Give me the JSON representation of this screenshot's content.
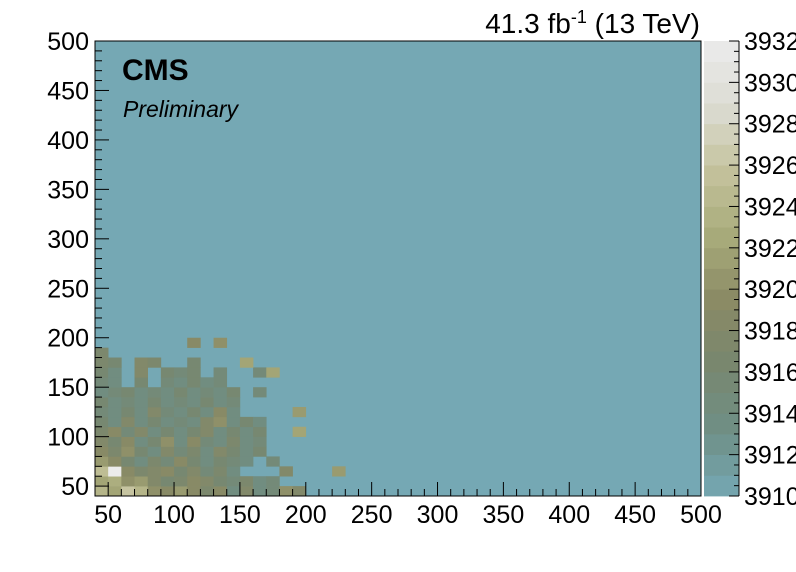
{
  "chart_data": {
    "type": "heatmap",
    "title": "",
    "xlabel": "",
    "ylabel": "",
    "xlim": [
      40,
      500
    ],
    "ylim": [
      40,
      500
    ],
    "bin_width": 10,
    "x_ticks": [
      "50",
      "100",
      "150",
      "200",
      "250",
      "300",
      "350",
      "400",
      "450",
      "500"
    ],
    "y_ticks": [
      "50",
      "100",
      "150",
      "200",
      "250",
      "300",
      "350",
      "400",
      "450",
      "500"
    ],
    "z_range": [
      3910,
      3932
    ],
    "z_ticks": [
      "3910",
      "3912",
      "3914",
      "3916",
      "3918",
      "3920",
      "3922",
      "3924",
      "3926",
      "3928",
      "3930",
      "3932"
    ],
    "palette": [
      "#75a8b4",
      "#6f8f86",
      "#78876f",
      "#8a8a65",
      "#a8ab7a",
      "#c4c29c",
      "#dcdcd3",
      "#ececec"
    ],
    "background_value": 3910,
    "cells": [
      {
        "x": 40,
        "y": 40,
        "z": 3924
      },
      {
        "x": 50,
        "y": 40,
        "z": 3922
      },
      {
        "x": 60,
        "y": 40,
        "z": 3926
      },
      {
        "x": 70,
        "y": 40,
        "z": 3924
      },
      {
        "x": 80,
        "y": 40,
        "z": 3920
      },
      {
        "x": 90,
        "y": 40,
        "z": 3919
      },
      {
        "x": 100,
        "y": 40,
        "z": 3921
      },
      {
        "x": 110,
        "y": 40,
        "z": 3919
      },
      {
        "x": 120,
        "y": 40,
        "z": 3917
      },
      {
        "x": 130,
        "y": 40,
        "z": 3919
      },
      {
        "x": 140,
        "y": 40,
        "z": 3914
      },
      {
        "x": 150,
        "y": 40,
        "z": 3918
      },
      {
        "x": 160,
        "y": 40,
        "z": 3914
      },
      {
        "x": 170,
        "y": 40,
        "z": 3915
      },
      {
        "x": 180,
        "y": 40,
        "z": 3920
      },
      {
        "x": 190,
        "y": 40,
        "z": 3918
      },
      {
        "x": 40,
        "y": 50,
        "z": 3922
      },
      {
        "x": 50,
        "y": 50,
        "z": 3923
      },
      {
        "x": 60,
        "y": 50,
        "z": 3920
      },
      {
        "x": 70,
        "y": 50,
        "z": 3921
      },
      {
        "x": 80,
        "y": 50,
        "z": 3918
      },
      {
        "x": 90,
        "y": 50,
        "z": 3916
      },
      {
        "x": 100,
        "y": 50,
        "z": 3917
      },
      {
        "x": 110,
        "y": 50,
        "z": 3919
      },
      {
        "x": 120,
        "y": 50,
        "z": 3918
      },
      {
        "x": 130,
        "y": 50,
        "z": 3916
      },
      {
        "x": 140,
        "y": 50,
        "z": 3915
      },
      {
        "x": 150,
        "y": 50,
        "z": 3917
      },
      {
        "x": 160,
        "y": 50,
        "z": 3914
      },
      {
        "x": 170,
        "y": 50,
        "z": 3915
      },
      {
        "x": 40,
        "y": 60,
        "z": 3925
      },
      {
        "x": 50,
        "y": 60,
        "z": 3932
      },
      {
        "x": 60,
        "y": 60,
        "z": 3919
      },
      {
        "x": 70,
        "y": 60,
        "z": 3917
      },
      {
        "x": 80,
        "y": 60,
        "z": 3918
      },
      {
        "x": 90,
        "y": 60,
        "z": 3919
      },
      {
        "x": 100,
        "y": 60,
        "z": 3916
      },
      {
        "x": 110,
        "y": 60,
        "z": 3918
      },
      {
        "x": 120,
        "y": 60,
        "z": 3915
      },
      {
        "x": 130,
        "y": 60,
        "z": 3917
      },
      {
        "x": 140,
        "y": 60,
        "z": 3914
      },
      {
        "x": 180,
        "y": 60,
        "z": 3918
      },
      {
        "x": 220,
        "y": 60,
        "z": 3921
      },
      {
        "x": 40,
        "y": 70,
        "z": 3921
      },
      {
        "x": 50,
        "y": 70,
        "z": 3919
      },
      {
        "x": 60,
        "y": 70,
        "z": 3916
      },
      {
        "x": 70,
        "y": 70,
        "z": 3914
      },
      {
        "x": 80,
        "y": 70,
        "z": 3917
      },
      {
        "x": 90,
        "y": 70,
        "z": 3915
      },
      {
        "x": 100,
        "y": 70,
        "z": 3919
      },
      {
        "x": 110,
        "y": 70,
        "z": 3916
      },
      {
        "x": 120,
        "y": 70,
        "z": 3914
      },
      {
        "x": 130,
        "y": 70,
        "z": 3916
      },
      {
        "x": 140,
        "y": 70,
        "z": 3915
      },
      {
        "x": 150,
        "y": 70,
        "z": 3914
      },
      {
        "x": 170,
        "y": 70,
        "z": 3915
      },
      {
        "x": 40,
        "y": 80,
        "z": 3919
      },
      {
        "x": 50,
        "y": 80,
        "z": 3917
      },
      {
        "x": 60,
        "y": 80,
        "z": 3920
      },
      {
        "x": 70,
        "y": 80,
        "z": 3916
      },
      {
        "x": 80,
        "y": 80,
        "z": 3914
      },
      {
        "x": 90,
        "y": 80,
        "z": 3918
      },
      {
        "x": 100,
        "y": 80,
        "z": 3915
      },
      {
        "x": 110,
        "y": 80,
        "z": 3917
      },
      {
        "x": 120,
        "y": 80,
        "z": 3914
      },
      {
        "x": 130,
        "y": 80,
        "z": 3918
      },
      {
        "x": 140,
        "y": 80,
        "z": 3916
      },
      {
        "x": 150,
        "y": 80,
        "z": 3914
      },
      {
        "x": 160,
        "y": 80,
        "z": 3916
      },
      {
        "x": 40,
        "y": 90,
        "z": 3918
      },
      {
        "x": 50,
        "y": 90,
        "z": 3916
      },
      {
        "x": 60,
        "y": 90,
        "z": 3919
      },
      {
        "x": 70,
        "y": 90,
        "z": 3914
      },
      {
        "x": 80,
        "y": 90,
        "z": 3916
      },
      {
        "x": 90,
        "y": 90,
        "z": 3920
      },
      {
        "x": 100,
        "y": 90,
        "z": 3914
      },
      {
        "x": 110,
        "y": 90,
        "z": 3919
      },
      {
        "x": 120,
        "y": 90,
        "z": 3915
      },
      {
        "x": 130,
        "y": 90,
        "z": 3914
      },
      {
        "x": 140,
        "y": 90,
        "z": 3917
      },
      {
        "x": 150,
        "y": 90,
        "z": 3914
      },
      {
        "x": 160,
        "y": 90,
        "z": 3915
      },
      {
        "x": 40,
        "y": 100,
        "z": 3917
      },
      {
        "x": 50,
        "y": 100,
        "z": 3919
      },
      {
        "x": 60,
        "y": 100,
        "z": 3915
      },
      {
        "x": 70,
        "y": 100,
        "z": 3918
      },
      {
        "x": 80,
        "y": 100,
        "z": 3914
      },
      {
        "x": 90,
        "y": 100,
        "z": 3916
      },
      {
        "x": 100,
        "y": 100,
        "z": 3914
      },
      {
        "x": 110,
        "y": 100,
        "z": 3916
      },
      {
        "x": 120,
        "y": 100,
        "z": 3918
      },
      {
        "x": 130,
        "y": 100,
        "z": 3914
      },
      {
        "x": 140,
        "y": 100,
        "z": 3916
      },
      {
        "x": 150,
        "y": 100,
        "z": 3914
      },
      {
        "x": 160,
        "y": 100,
        "z": 3916
      },
      {
        "x": 190,
        "y": 100,
        "z": 3922
      },
      {
        "x": 40,
        "y": 110,
        "z": 3916
      },
      {
        "x": 50,
        "y": 110,
        "z": 3914
      },
      {
        "x": 60,
        "y": 110,
        "z": 3918
      },
      {
        "x": 70,
        "y": 110,
        "z": 3914
      },
      {
        "x": 80,
        "y": 110,
        "z": 3916
      },
      {
        "x": 90,
        "y": 110,
        "z": 3914
      },
      {
        "x": 100,
        "y": 110,
        "z": 3915
      },
      {
        "x": 110,
        "y": 110,
        "z": 3914
      },
      {
        "x": 120,
        "y": 110,
        "z": 3918
      },
      {
        "x": 130,
        "y": 110,
        "z": 3920
      },
      {
        "x": 140,
        "y": 110,
        "z": 3914
      },
      {
        "x": 150,
        "y": 110,
        "z": 3916
      },
      {
        "x": 160,
        "y": 110,
        "z": 3914
      },
      {
        "x": 40,
        "y": 120,
        "z": 3915
      },
      {
        "x": 50,
        "y": 120,
        "z": 3914
      },
      {
        "x": 60,
        "y": 120,
        "z": 3916
      },
      {
        "x": 70,
        "y": 120,
        "z": 3914
      },
      {
        "x": 80,
        "y": 120,
        "z": 3918
      },
      {
        "x": 90,
        "y": 120,
        "z": 3915
      },
      {
        "x": 100,
        "y": 120,
        "z": 3914
      },
      {
        "x": 110,
        "y": 120,
        "z": 3916
      },
      {
        "x": 120,
        "y": 120,
        "z": 3914
      },
      {
        "x": 130,
        "y": 120,
        "z": 3919
      },
      {
        "x": 140,
        "y": 120,
        "z": 3914
      },
      {
        "x": 190,
        "y": 120,
        "z": 3921
      },
      {
        "x": 40,
        "y": 130,
        "z": 3916
      },
      {
        "x": 50,
        "y": 130,
        "z": 3914
      },
      {
        "x": 60,
        "y": 130,
        "z": 3915
      },
      {
        "x": 70,
        "y": 130,
        "z": 3914
      },
      {
        "x": 80,
        "y": 130,
        "z": 3916
      },
      {
        "x": 90,
        "y": 130,
        "z": 3914
      },
      {
        "x": 100,
        "y": 130,
        "z": 3915
      },
      {
        "x": 110,
        "y": 130,
        "z": 3914
      },
      {
        "x": 120,
        "y": 130,
        "z": 3916
      },
      {
        "x": 130,
        "y": 130,
        "z": 3914
      },
      {
        "x": 140,
        "y": 130,
        "z": 3915
      },
      {
        "x": 40,
        "y": 140,
        "z": 3914
      },
      {
        "x": 50,
        "y": 140,
        "z": 3915
      },
      {
        "x": 60,
        "y": 140,
        "z": 3916
      },
      {
        "x": 70,
        "y": 140,
        "z": 3914
      },
      {
        "x": 80,
        "y": 140,
        "z": 3915
      },
      {
        "x": 90,
        "y": 140,
        "z": 3914
      },
      {
        "x": 100,
        "y": 140,
        "z": 3916
      },
      {
        "x": 110,
        "y": 140,
        "z": 3914
      },
      {
        "x": 120,
        "y": 140,
        "z": 3915
      },
      {
        "x": 130,
        "y": 140,
        "z": 3914
      },
      {
        "x": 140,
        "y": 140,
        "z": 3916
      },
      {
        "x": 160,
        "y": 140,
        "z": 3915
      },
      {
        "x": 40,
        "y": 150,
        "z": 3915
      },
      {
        "x": 50,
        "y": 150,
        "z": 3914
      },
      {
        "x": 70,
        "y": 150,
        "z": 3916
      },
      {
        "x": 90,
        "y": 150,
        "z": 3915
      },
      {
        "x": 100,
        "y": 150,
        "z": 3914
      },
      {
        "x": 110,
        "y": 150,
        "z": 3916
      },
      {
        "x": 120,
        "y": 150,
        "z": 3914
      },
      {
        "x": 130,
        "y": 150,
        "z": 3915
      },
      {
        "x": 40,
        "y": 160,
        "z": 3916
      },
      {
        "x": 50,
        "y": 160,
        "z": 3914
      },
      {
        "x": 70,
        "y": 160,
        "z": 3918
      },
      {
        "x": 90,
        "y": 160,
        "z": 3916
      },
      {
        "x": 100,
        "y": 160,
        "z": 3915
      },
      {
        "x": 110,
        "y": 160,
        "z": 3916
      },
      {
        "x": 130,
        "y": 160,
        "z": 3915
      },
      {
        "x": 160,
        "y": 160,
        "z": 3915
      },
      {
        "x": 170,
        "y": 160,
        "z": 3922
      },
      {
        "x": 40,
        "y": 170,
        "z": 3917
      },
      {
        "x": 50,
        "y": 170,
        "z": 3916
      },
      {
        "x": 70,
        "y": 170,
        "z": 3918
      },
      {
        "x": 80,
        "y": 170,
        "z": 3917
      },
      {
        "x": 110,
        "y": 170,
        "z": 3916
      },
      {
        "x": 150,
        "y": 170,
        "z": 3922
      },
      {
        "x": 40,
        "y": 180,
        "z": 3917
      },
      {
        "x": 110,
        "y": 190,
        "z": 3919
      },
      {
        "x": 130,
        "y": 190,
        "z": 3920
      }
    ]
  },
  "annotations": {
    "lumi_value": "41.3 fb",
    "lumi_exponent": "-1",
    "lumi_energy": "(13 TeV)",
    "experiment": "CMS",
    "status": "Preliminary"
  }
}
